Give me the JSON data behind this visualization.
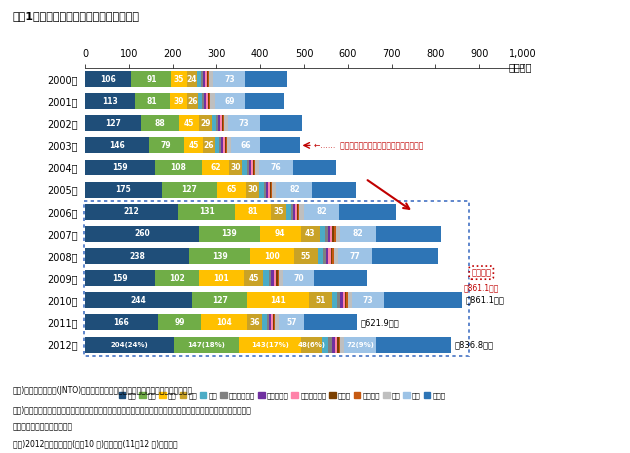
{
  "title": "図表1　国籍別訪日外国人の推移（実数）",
  "unit_label": "（万人）",
  "years": [
    "2000年",
    "2001年",
    "2002年",
    "2003年",
    "2004年",
    "2005年",
    "2006年",
    "2007年",
    "2008年",
    "2009年",
    "2010年",
    "2011年",
    "2012年"
  ],
  "categories": [
    "韓国",
    "台湾",
    "中国",
    "香港",
    "タイ",
    "シンガポール",
    "マレーシア",
    "インドネシア",
    "インド",
    "ベトナム",
    "英国",
    "米国",
    "その他"
  ],
  "colors": [
    "#1f4e79",
    "#70ad47",
    "#ffc000",
    "#c9a227",
    "#4bacc6",
    "#808080",
    "#7030a0",
    "#ff82a9",
    "#7b3f00",
    "#c65911",
    "#bfbfbf",
    "#9dc3e6",
    "#2e75b6"
  ],
  "data": {
    "2000年": [
      106,
      91,
      35,
      24,
      8,
      5,
      5,
      4,
      3,
      2,
      10,
      73,
      95
    ],
    "2001年": [
      113,
      81,
      39,
      26,
      8,
      5,
      5,
      4,
      3,
      2,
      10,
      69,
      90
    ],
    "2002年": [
      127,
      88,
      45,
      29,
      9,
      5,
      5,
      4,
      3,
      2,
      10,
      73,
      95
    ],
    "2003年": [
      146,
      79,
      45,
      26,
      9,
      5,
      5,
      4,
      3,
      2,
      10,
      66,
      90
    ],
    "2004年": [
      159,
      108,
      62,
      30,
      10,
      5,
      5,
      4,
      3,
      2,
      10,
      76,
      100
    ],
    "2005年": [
      175,
      127,
      65,
      30,
      11,
      5,
      5,
      4,
      3,
      2,
      10,
      82,
      100
    ],
    "2006年": [
      212,
      131,
      81,
      35,
      11,
      5,
      5,
      4,
      3,
      2,
      10,
      82,
      130
    ],
    "2007年": [
      260,
      139,
      94,
      43,
      12,
      6,
      6,
      5,
      4,
      3,
      10,
      82,
      150
    ],
    "2008年": [
      238,
      139,
      100,
      55,
      12,
      6,
      6,
      5,
      4,
      3,
      10,
      77,
      150
    ],
    "2009年": [
      159,
      102,
      101,
      45,
      12,
      6,
      6,
      5,
      4,
      3,
      10,
      70,
      120
    ],
    "2010年": [
      244,
      127,
      141,
      51,
      13,
      6,
      6,
      5,
      4,
      3,
      10,
      73,
      178
    ],
    "2011年": [
      166,
      99,
      104,
      36,
      10,
      5,
      5,
      4,
      3,
      2,
      10,
      57,
      120
    ],
    "2012年": [
      204,
      147,
      143,
      48,
      14,
      7,
      7,
      5,
      4,
      3,
      10,
      72,
      172
    ]
  },
  "bar_labels": {
    "2000年": {
      "韓国": "106",
      "台湾": "91",
      "中国": "35",
      "香港": "24",
      "米国": "73"
    },
    "2001年": {
      "韓国": "113",
      "台湾": "81",
      "中国": "39",
      "香港": "26",
      "米国": "69"
    },
    "2002年": {
      "韓国": "127",
      "台湾": "88",
      "中国": "45",
      "香港": "29",
      "米国": "73"
    },
    "2003年": {
      "韓国": "146",
      "台湾": "79",
      "中国": "45",
      "香港": "26",
      "米国": "66"
    },
    "2004年": {
      "韓国": "159",
      "台湾": "108",
      "中国": "62",
      "香港": "30",
      "米国": "76"
    },
    "2005年": {
      "韓国": "175",
      "台湾": "127",
      "中国": "65",
      "香港": "30",
      "米国": "82"
    },
    "2006年": {
      "韓国": "212",
      "台湾": "131",
      "中国": "81",
      "香港": "35",
      "米国": "82"
    },
    "2007年": {
      "韓国": "260",
      "台湾": "139",
      "中国": "94",
      "香港": "43",
      "米国": "82"
    },
    "2008年": {
      "韓国": "238",
      "台湾": "139",
      "中国": "100",
      "香港": "55",
      "米国": "77"
    },
    "2009年": {
      "韓国": "159",
      "台湾": "102",
      "中国": "101",
      "香港": "45",
      "米国": "70"
    },
    "2010年": {
      "韓国": "244",
      "台湾": "127",
      "中国": "141",
      "香港": "51",
      "米国": "73"
    },
    "2011年": {
      "韓国": "166",
      "台湾": "99",
      "中国": "104",
      "香港": "36",
      "米国": "57"
    },
    "2012年": {
      "韓国": "204(24%)",
      "台湾": "147(18%)",
      "中国": "143(17%)",
      "香港": "48(6%)",
      "米国": "72(9%)"
    }
  },
  "totals": {
    "2010年": "計861.1万人",
    "2011年": "計621.9万人",
    "2012年": "計836.8万人"
  },
  "visit_japan_text": "←……  ビジット・ジャパン・キャンペーン開始",
  "past_best_label": "過去最高",
  "past_best_value": "計861.1万人",
  "note1": "出所)日本政府観光局(JNTO)の公表資料をもとに三井住友トラスト基礎研究所作成",
  "note2": "注１)国籍に基づく法務省集計の外国人正規入国者数から日本に居住する外国人を除き、これに外国人一時上陸客等",
  "note2b": "　　を加えた外国人旅行者数",
  "note3": "注２)2012年は、暫定値(１～10 月)と推計値(11～12 月)に基づく"
}
